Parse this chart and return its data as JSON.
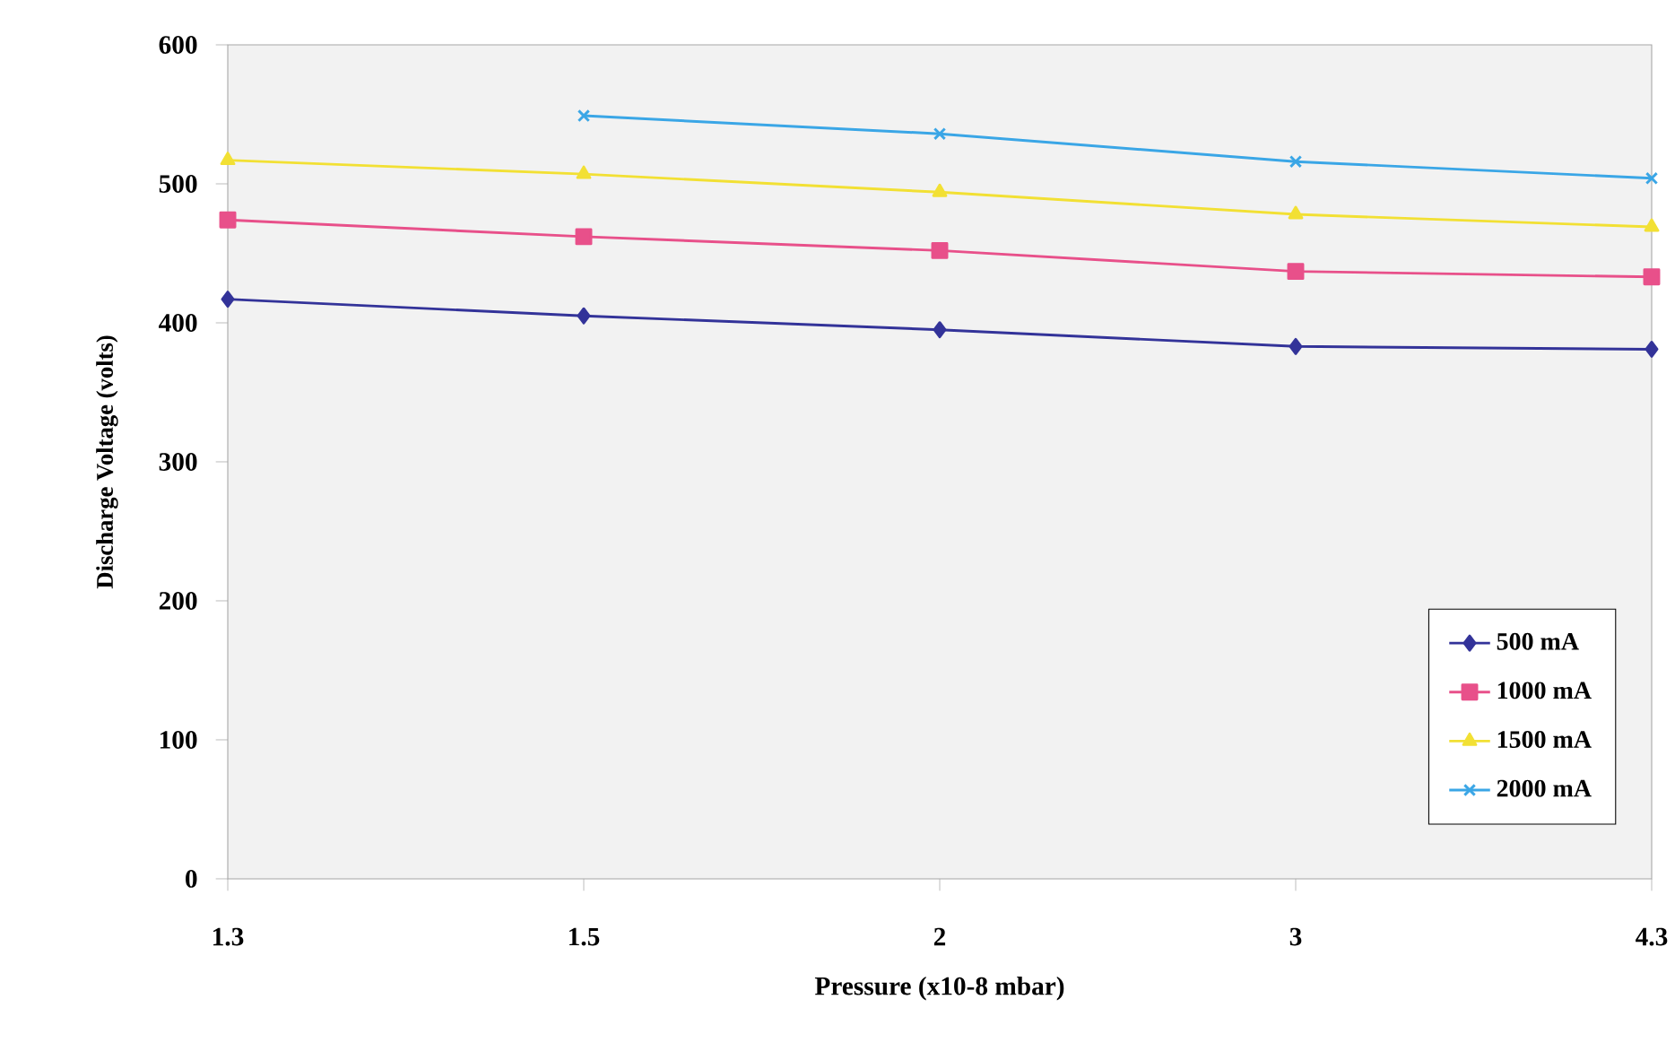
{
  "chart_data": {
    "type": "line",
    "xlabel": "Pressure (x10-8 mbar)",
    "ylabel": "Discharge Voltage (volts)",
    "categories": [
      "1.3",
      "1.5",
      "2",
      "3",
      "4.3"
    ],
    "series": [
      {
        "name": "500 mA",
        "color": "#333399",
        "marker": "diamond",
        "values": [
          417,
          405,
          395,
          383,
          381
        ]
      },
      {
        "name": "1000 mA",
        "color": "#e8508a",
        "marker": "square",
        "values": [
          474,
          462,
          452,
          437,
          433
        ]
      },
      {
        "name": "1500 mA",
        "color": "#f2e034",
        "marker": "triangle",
        "values": [
          517,
          507,
          494,
          478,
          469
        ]
      },
      {
        "name": "2000 mA",
        "color": "#3aa6e6",
        "marker": "cross",
        "values": [
          null,
          549,
          536,
          516,
          504
        ]
      }
    ],
    "ylim": [
      0,
      600
    ],
    "yticks": [
      0,
      100,
      200,
      300,
      400,
      500,
      600
    ],
    "grid": false,
    "legend": "bottom right",
    "line_style": "solid"
  }
}
